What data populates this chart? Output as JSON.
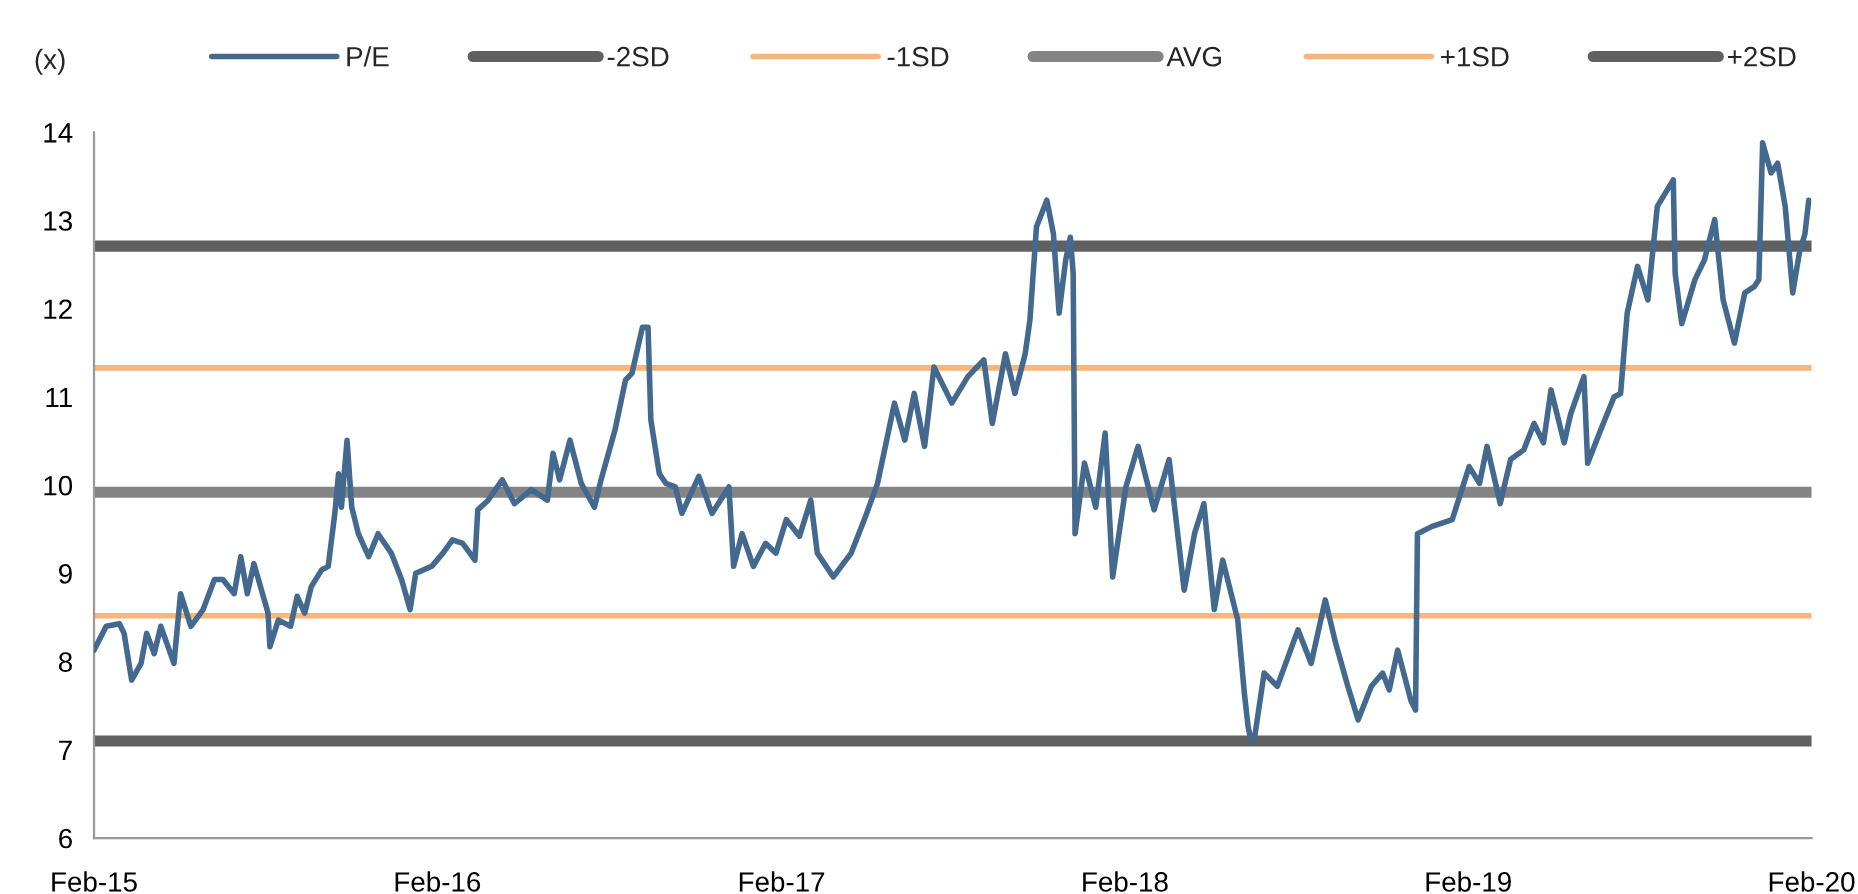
{
  "chart_data": {
    "type": "line",
    "ylabel": "(x)",
    "legend": "top",
    "grid": false,
    "marker": "none",
    "line_style": "solid",
    "xlim": [
      "2015-02-01",
      "2020-02-01"
    ],
    "xticks": [
      {
        "value": "2015-02-01",
        "label": "Feb-15"
      },
      {
        "value": "2016-02-01",
        "label": "Feb-16"
      },
      {
        "value": "2017-02-01",
        "label": "Feb-17"
      },
      {
        "value": "2018-02-01",
        "label": "Feb-18"
      },
      {
        "value": "2019-02-01",
        "label": "Feb-19"
      },
      {
        "value": "2020-02-01",
        "label": "Feb-20"
      }
    ],
    "ylim": [
      6,
      14
    ],
    "yticks": [
      6,
      7,
      8,
      9,
      10,
      11,
      12,
      13,
      14
    ],
    "series": [
      {
        "name": "P/E",
        "color": "#44698f",
        "x": [
          "2015-02-01",
          "2015-02-14",
          "2015-02-28",
          "2015-03-05",
          "2015-03-13",
          "2015-03-23",
          "2015-03-29",
          "2015-04-06",
          "2015-04-13",
          "2015-04-27",
          "2015-05-04",
          "2015-05-15",
          "2015-05-28",
          "2015-06-09",
          "2015-06-18",
          "2015-06-30",
          "2015-07-07",
          "2015-07-14",
          "2015-07-21",
          "2015-08-05",
          "2015-08-07",
          "2015-08-16",
          "2015-08-29",
          "2015-09-05",
          "2015-09-13",
          "2015-09-20",
          "2015-10-01",
          "2015-10-08",
          "2015-10-15",
          "2015-10-19",
          "2015-10-22",
          "2015-10-28",
          "2015-11-02",
          "2015-11-09",
          "2015-11-20",
          "2015-11-30",
          "2015-12-14",
          "2015-12-25",
          "2016-01-03",
          "2016-01-09",
          "2016-01-26",
          "2016-02-07",
          "2016-02-17",
          "2016-02-28",
          "2016-03-12",
          "2016-03-15",
          "2016-03-26",
          "2016-04-10",
          "2016-04-23",
          "2016-05-11",
          "2016-05-28",
          "2016-06-03",
          "2016-06-10",
          "2016-06-21",
          "2016-07-03",
          "2016-07-17",
          "2016-07-24",
          "2016-08-08",
          "2016-08-19",
          "2016-08-26",
          "2016-09-06",
          "2016-09-12",
          "2016-09-15",
          "2016-09-24",
          "2016-10-01",
          "2016-10-11",
          "2016-10-18",
          "2016-11-05",
          "2016-11-19",
          "2016-12-07",
          "2016-12-12",
          "2016-12-21",
          "2017-01-02",
          "2017-01-15",
          "2017-01-26",
          "2017-02-06",
          "2017-02-20",
          "2017-03-04",
          "2017-03-11",
          "2017-03-28",
          "2017-04-16",
          "2017-04-30",
          "2017-05-14",
          "2017-06-01",
          "2017-06-12",
          "2017-06-22",
          "2017-07-03",
          "2017-07-13",
          "2017-08-01",
          "2017-08-18",
          "2017-09-04",
          "2017-09-13",
          "2017-09-27",
          "2017-10-07",
          "2017-10-18",
          "2017-10-23",
          "2017-10-30",
          "2017-11-10",
          "2017-11-17",
          "2017-11-23",
          "2017-11-30",
          "2017-12-05",
          "2017-12-08",
          "2017-12-10",
          "2017-12-20",
          "2018-01-01",
          "2018-01-11",
          "2018-01-19",
          "2018-02-02",
          "2018-02-15",
          "2018-03-04",
          "2018-03-20",
          "2018-04-05",
          "2018-04-16",
          "2018-04-26",
          "2018-05-07",
          "2018-05-16",
          "2018-06-01",
          "2018-06-08",
          "2018-06-12",
          "2018-06-15",
          "2018-06-19",
          "2018-06-29",
          "2018-07-13",
          "2018-08-04",
          "2018-08-18",
          "2018-09-02",
          "2018-09-13",
          "2018-09-26",
          "2018-10-07",
          "2018-10-21",
          "2018-11-02",
          "2018-11-09",
          "2018-11-18",
          "2018-12-02",
          "2018-12-07",
          "2018-12-09",
          "2018-12-24",
          "2019-01-15",
          "2019-02-02",
          "2019-02-13",
          "2019-02-21",
          "2019-03-07",
          "2019-03-18",
          "2019-04-01",
          "2019-04-12",
          "2019-04-22",
          "2019-04-30",
          "2019-05-14",
          "2019-05-21",
          "2019-06-04",
          "2019-06-08",
          "2019-06-22",
          "2019-07-06",
          "2019-07-13",
          "2019-07-20",
          "2019-07-31",
          "2019-08-11",
          "2019-08-21",
          "2019-09-07",
          "2019-09-09",
          "2019-09-16",
          "2019-09-30",
          "2019-10-10",
          "2019-10-21",
          "2019-10-30",
          "2019-11-11",
          "2019-11-22",
          "2019-12-02",
          "2019-12-07",
          "2019-12-11",
          "2019-12-20",
          "2019-12-27",
          "2020-01-04",
          "2020-01-12",
          "2020-01-19",
          "2020-01-25",
          "2020-01-29"
        ],
        "values": [
          8.13,
          8.4,
          8.43,
          8.32,
          7.79,
          7.98,
          8.32,
          8.09,
          8.4,
          7.98,
          8.77,
          8.4,
          8.59,
          8.93,
          8.93,
          8.77,
          9.19,
          8.77,
          9.11,
          8.55,
          8.17,
          8.47,
          8.4,
          8.74,
          8.55,
          8.85,
          9.04,
          9.08,
          9.68,
          10.13,
          9.75,
          10.51,
          9.75,
          9.45,
          9.19,
          9.45,
          9.23,
          8.93,
          8.59,
          9.0,
          9.08,
          9.23,
          9.38,
          9.34,
          9.15,
          9.72,
          9.83,
          10.06,
          9.79,
          9.95,
          9.83,
          10.36,
          10.06,
          10.51,
          10.02,
          9.75,
          10.06,
          10.63,
          11.19,
          11.27,
          11.79,
          11.79,
          10.74,
          10.13,
          10.02,
          9.98,
          9.68,
          10.1,
          9.68,
          9.98,
          9.08,
          9.45,
          9.08,
          9.34,
          9.23,
          9.61,
          9.42,
          9.83,
          9.23,
          8.96,
          9.23,
          9.61,
          10.02,
          10.93,
          10.51,
          11.04,
          10.44,
          11.34,
          10.93,
          11.23,
          11.42,
          10.7,
          11.49,
          11.04,
          11.49,
          11.87,
          12.93,
          13.23,
          12.85,
          11.95,
          12.55,
          12.81,
          12.4,
          9.45,
          10.25,
          9.75,
          10.59,
          8.96,
          9.98,
          10.44,
          9.72,
          10.29,
          8.81,
          9.45,
          9.79,
          8.59,
          9.15,
          8.47,
          7.64,
          7.26,
          7.11,
          7.15,
          7.87,
          7.72,
          8.36,
          7.98,
          8.7,
          8.21,
          7.72,
          7.34,
          7.72,
          7.87,
          7.68,
          8.13,
          7.56,
          7.45,
          9.45,
          9.53,
          9.61,
          10.21,
          10.02,
          10.44,
          9.79,
          10.29,
          10.4,
          10.7,
          10.48,
          11.08,
          10.48,
          10.81,
          11.23,
          10.25,
          10.63,
          11.0,
          11.04,
          11.95,
          12.48,
          12.1,
          13.16,
          13.46,
          12.4,
          11.83,
          12.33,
          12.55,
          13.01,
          12.1,
          11.61,
          12.18,
          12.25,
          12.33,
          13.88,
          13.54,
          13.65,
          13.16,
          12.18,
          12.63,
          12.85,
          13.23
        ]
      },
      {
        "name": "-2SD",
        "color": "#606060",
        "x": [
          "2015-02-01",
          "2020-02-01"
        ],
        "values": [
          7.1,
          7.1
        ]
      },
      {
        "name": "-1SD",
        "color": "#f9b57a",
        "x": [
          "2015-02-01",
          "2020-02-01"
        ],
        "values": [
          8.52,
          8.52
        ]
      },
      {
        "name": "AVG",
        "color": "#848484",
        "x": [
          "2015-02-01",
          "2020-02-01"
        ],
        "values": [
          9.92,
          9.92
        ]
      },
      {
        "name": "+1SD",
        "color": "#f9b57a",
        "x": [
          "2015-02-01",
          "2020-02-01"
        ],
        "values": [
          11.33,
          11.33
        ]
      },
      {
        "name": "+2SD",
        "color": "#606060",
        "x": [
          "2015-02-01",
          "2020-02-01"
        ],
        "values": [
          12.71,
          12.71
        ]
      }
    ]
  }
}
